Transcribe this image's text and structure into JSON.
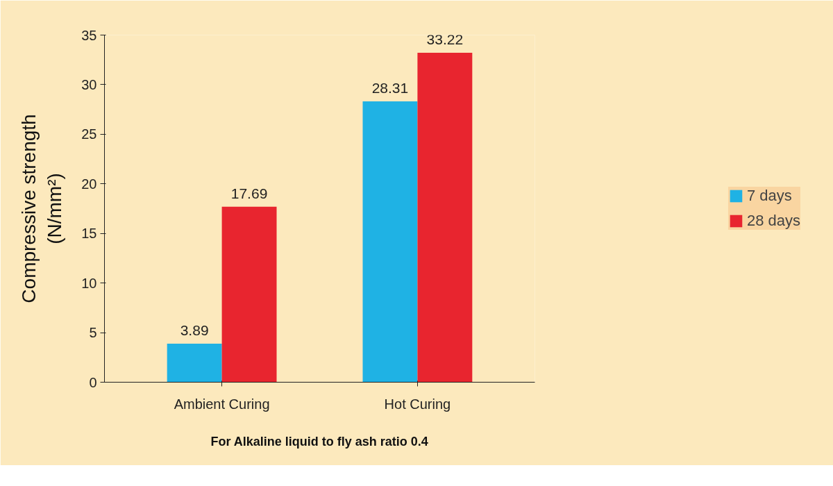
{
  "chart_data": {
    "type": "bar",
    "categories": [
      "Ambient Curing",
      "Hot Curing"
    ],
    "series": [
      {
        "name": "7 days",
        "color": "#1fb2e4",
        "values": [
          3.89,
          28.31
        ]
      },
      {
        "name": "28 days",
        "color": "#e8252f",
        "values": [
          17.69,
          33.22
        ]
      }
    ],
    "xlabel": "For Alkaline liquid to fly ash ratio 0.4",
    "ylabel": "Compressive strength (N/mm²)",
    "ylim": [
      0,
      35
    ],
    "yticks": [
      0,
      5,
      10,
      15,
      20,
      25,
      30,
      35
    ],
    "grid": false,
    "legend": "right",
    "data_labels": true
  }
}
